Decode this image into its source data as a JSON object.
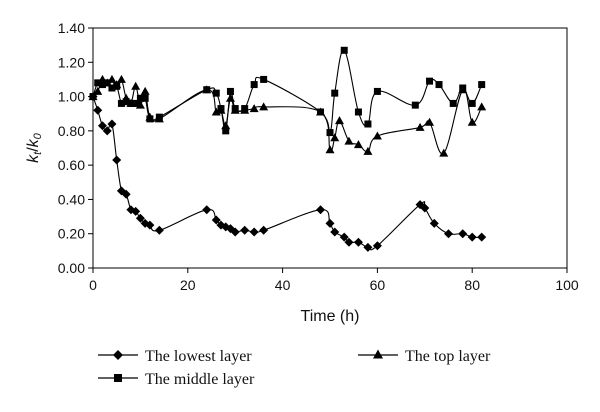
{
  "chart_data": {
    "type": "line",
    "title": "",
    "xlabel": "Time (h)",
    "ylabel_parts": {
      "k1": "k",
      "sub1": "t",
      "slash": "/",
      "k2": "k",
      "sub2": "0"
    },
    "xlim": [
      0,
      100
    ],
    "ylim": [
      0,
      1.4
    ],
    "x_ticks": [
      "0",
      "20",
      "40",
      "60",
      "80",
      "100"
    ],
    "y_ticks": [
      "0.00",
      "0.20",
      "0.40",
      "0.60",
      "0.80",
      "1.00",
      "1.20",
      "1.40"
    ],
    "grid": false,
    "legend_placement": "bottom",
    "series": [
      {
        "name": "The lowest layer",
        "marker": "diamond",
        "color": "#000000",
        "points": [
          [
            0,
            1.0
          ],
          [
            1,
            0.92
          ],
          [
            2,
            0.83
          ],
          [
            3,
            0.8
          ],
          [
            4,
            0.84
          ],
          [
            5,
            0.63
          ],
          [
            6,
            0.45
          ],
          [
            7,
            0.43
          ],
          [
            8,
            0.34
          ],
          [
            9,
            0.33
          ],
          [
            10,
            0.29
          ],
          [
            11,
            0.26
          ],
          [
            12,
            0.25
          ],
          [
            14,
            0.22
          ],
          [
            24,
            0.34
          ],
          [
            26,
            0.28
          ],
          [
            27,
            0.25
          ],
          [
            28,
            0.24
          ],
          [
            29,
            0.23
          ],
          [
            30,
            0.21
          ],
          [
            32,
            0.22
          ],
          [
            34,
            0.21
          ],
          [
            36,
            0.22
          ],
          [
            48,
            0.34
          ],
          [
            50,
            0.26
          ],
          [
            51,
            0.21
          ],
          [
            53,
            0.18
          ],
          [
            54,
            0.15
          ],
          [
            56,
            0.15
          ],
          [
            58,
            0.12
          ],
          [
            60,
            0.13
          ],
          [
            69,
            0.37
          ],
          [
            70,
            0.35
          ],
          [
            72,
            0.26
          ],
          [
            75,
            0.2
          ],
          [
            78,
            0.2
          ],
          [
            80,
            0.18
          ],
          [
            82,
            0.18
          ]
        ]
      },
      {
        "name": "The middle layer",
        "marker": "square",
        "color": "#000000",
        "points": [
          [
            0,
            1.0
          ],
          [
            1,
            1.08
          ],
          [
            2,
            1.07
          ],
          [
            3,
            1.08
          ],
          [
            4,
            1.05
          ],
          [
            5,
            1.06
          ],
          [
            6,
            0.96
          ],
          [
            7,
            0.97
          ],
          [
            8,
            0.96
          ],
          [
            9,
            0.96
          ],
          [
            10,
            0.99
          ],
          [
            11,
            0.99
          ],
          [
            12,
            0.87
          ],
          [
            14,
            0.88
          ],
          [
            24,
            1.04
          ],
          [
            26,
            1.02
          ],
          [
            27,
            0.93
          ],
          [
            28,
            0.8
          ],
          [
            29,
            1.03
          ],
          [
            30,
            0.93
          ],
          [
            32,
            0.93
          ],
          [
            34,
            1.07
          ],
          [
            36,
            1.1
          ],
          [
            48,
            0.91
          ],
          [
            50,
            0.79
          ],
          [
            51,
            1.02
          ],
          [
            53,
            1.27
          ],
          [
            56,
            0.91
          ],
          [
            58,
            0.84
          ],
          [
            60,
            1.03
          ],
          [
            68,
            0.95
          ],
          [
            71,
            1.09
          ],
          [
            73,
            1.07
          ],
          [
            76,
            0.96
          ],
          [
            78,
            1.05
          ],
          [
            80,
            0.96
          ],
          [
            82,
            1.07
          ]
        ]
      },
      {
        "name": "The top layer",
        "marker": "triangle",
        "color": "#000000",
        "points": [
          [
            0,
            1.0
          ],
          [
            1,
            1.03
          ],
          [
            2,
            1.1
          ],
          [
            3,
            1.08
          ],
          [
            4,
            1.1
          ],
          [
            5,
            1.07
          ],
          [
            6,
            1.1
          ],
          [
            7,
            0.99
          ],
          [
            8,
            0.96
          ],
          [
            9,
            1.06
          ],
          [
            10,
            0.95
          ],
          [
            11,
            1.03
          ],
          [
            12,
            0.88
          ],
          [
            14,
            0.87
          ],
          [
            24,
            1.04
          ],
          [
            26,
            0.91
          ],
          [
            27,
            0.92
          ],
          [
            28,
            0.83
          ],
          [
            29,
            0.99
          ],
          [
            30,
            0.92
          ],
          [
            32,
            0.92
          ],
          [
            34,
            0.93
          ],
          [
            36,
            0.94
          ],
          [
            48,
            0.91
          ],
          [
            50,
            0.69
          ],
          [
            51,
            0.76
          ],
          [
            52,
            0.86
          ],
          [
            54,
            0.74
          ],
          [
            56,
            0.72
          ],
          [
            58,
            0.68
          ],
          [
            60,
            0.77
          ],
          [
            69,
            0.82
          ],
          [
            71,
            0.85
          ],
          [
            74,
            0.67
          ],
          [
            78,
            1.04
          ],
          [
            80,
            0.85
          ],
          [
            82,
            0.94
          ]
        ]
      }
    ]
  }
}
